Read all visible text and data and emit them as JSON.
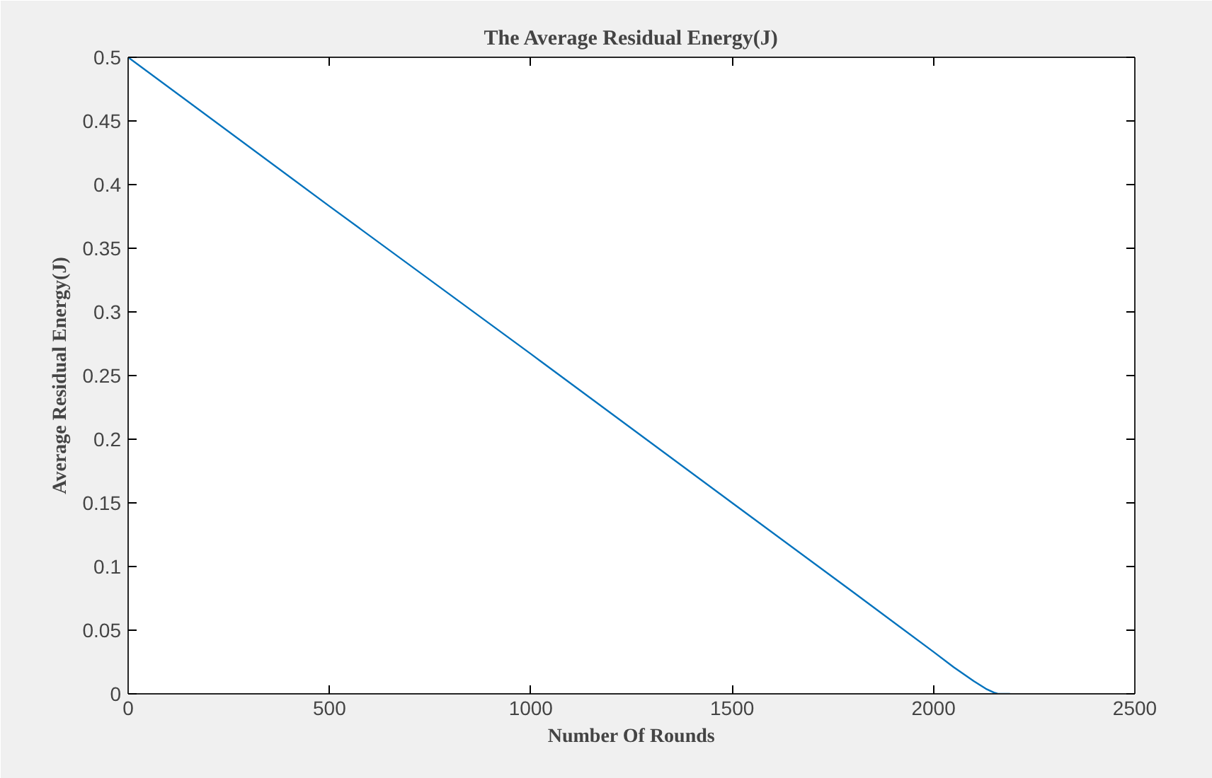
{
  "chart_data": {
    "type": "line",
    "title": "The Average Residual Energy(J)",
    "xlabel": "Number Of Rounds",
    "ylabel": "Average Residual Energy(J)",
    "x": [
      0,
      500,
      1000,
      1500,
      1800,
      2000,
      2050,
      2100,
      2130,
      2150,
      2160,
      2190
    ],
    "series": [
      {
        "color": "#0072bd",
        "values": [
          0.5,
          0.383,
          0.267,
          0.15,
          0.08,
          0.033,
          0.021,
          0.01,
          0.004,
          0.001,
          0,
          0
        ]
      }
    ],
    "xlim": [
      0,
      2500
    ],
    "xticks": [
      0,
      500,
      1000,
      1500,
      2000,
      2500
    ],
    "ylim": [
      0,
      0.5
    ],
    "yticks": [
      0,
      0.05,
      0.1,
      0.15,
      0.2,
      0.25,
      0.3,
      0.35,
      0.4,
      0.45,
      0.5
    ],
    "grid": false,
    "marker": "none",
    "line_style": "solid"
  }
}
